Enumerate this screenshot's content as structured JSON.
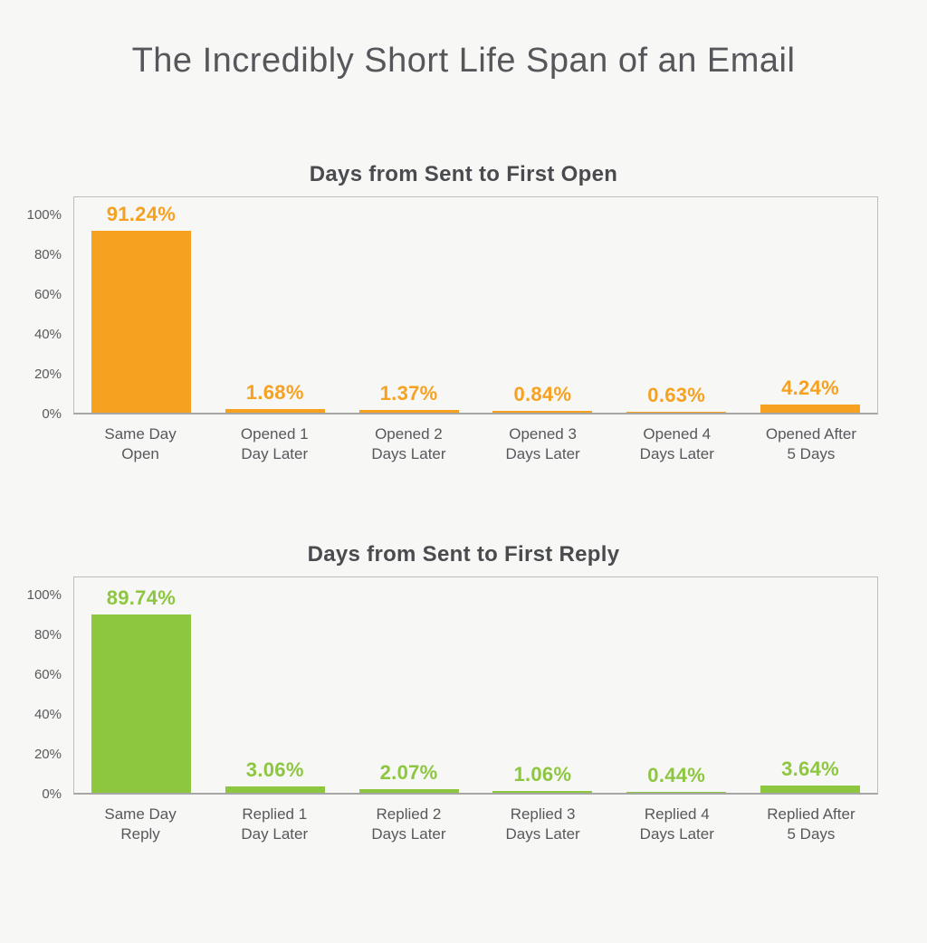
{
  "page": {
    "title": "The Incredibly Short Life Span of an Email",
    "background_color": "#F7F7F6",
    "title_color": "#56575B"
  },
  "axis": {
    "tick_values": [
      0,
      20,
      40,
      60,
      80,
      100
    ],
    "tick_labels": [
      "0%",
      "20%",
      "40%",
      "60%",
      "80%",
      "100%"
    ],
    "label_color": "#58595B",
    "border_color": "#BDBDBD"
  },
  "chart_data": [
    {
      "type": "bar",
      "title": "Days from Sent to First Open",
      "categories": [
        "Same Day\nOpen",
        "Opened 1\nDay Later",
        "Opened 2\nDays Later",
        "Opened 3\nDays Later",
        "Opened 4\nDays Later",
        "Opened After\n5 Days"
      ],
      "values": [
        91.24,
        1.68,
        1.37,
        0.84,
        0.63,
        4.24
      ],
      "value_labels": [
        "91.24%",
        "1.68%",
        "1.37%",
        "0.84%",
        "0.63%",
        "4.24%"
      ],
      "bar_color": "#F6A120",
      "xlabel": "",
      "ylabel": "",
      "ylim": [
        0,
        109.5
      ],
      "yticks": [
        0,
        20,
        40,
        60,
        80,
        100
      ],
      "grid": false,
      "legend": false
    },
    {
      "type": "bar",
      "title": "Days from Sent to First Reply",
      "categories": [
        "Same Day\nReply",
        "Replied 1\nDay Later",
        "Replied 2\nDays Later",
        "Replied 3\nDays Later",
        "Replied 4\nDays Later",
        "Replied After\n5 Days"
      ],
      "values": [
        89.74,
        3.06,
        2.07,
        1.06,
        0.44,
        3.64
      ],
      "value_labels": [
        "89.74%",
        "3.06%",
        "2.07%",
        "1.06%",
        "0.44%",
        "3.64%"
      ],
      "bar_color": "#8DC63F",
      "xlabel": "",
      "ylabel": "",
      "ylim": [
        0,
        109.5
      ],
      "yticks": [
        0,
        20,
        40,
        60,
        80,
        100
      ],
      "grid": false,
      "legend": false
    }
  ]
}
